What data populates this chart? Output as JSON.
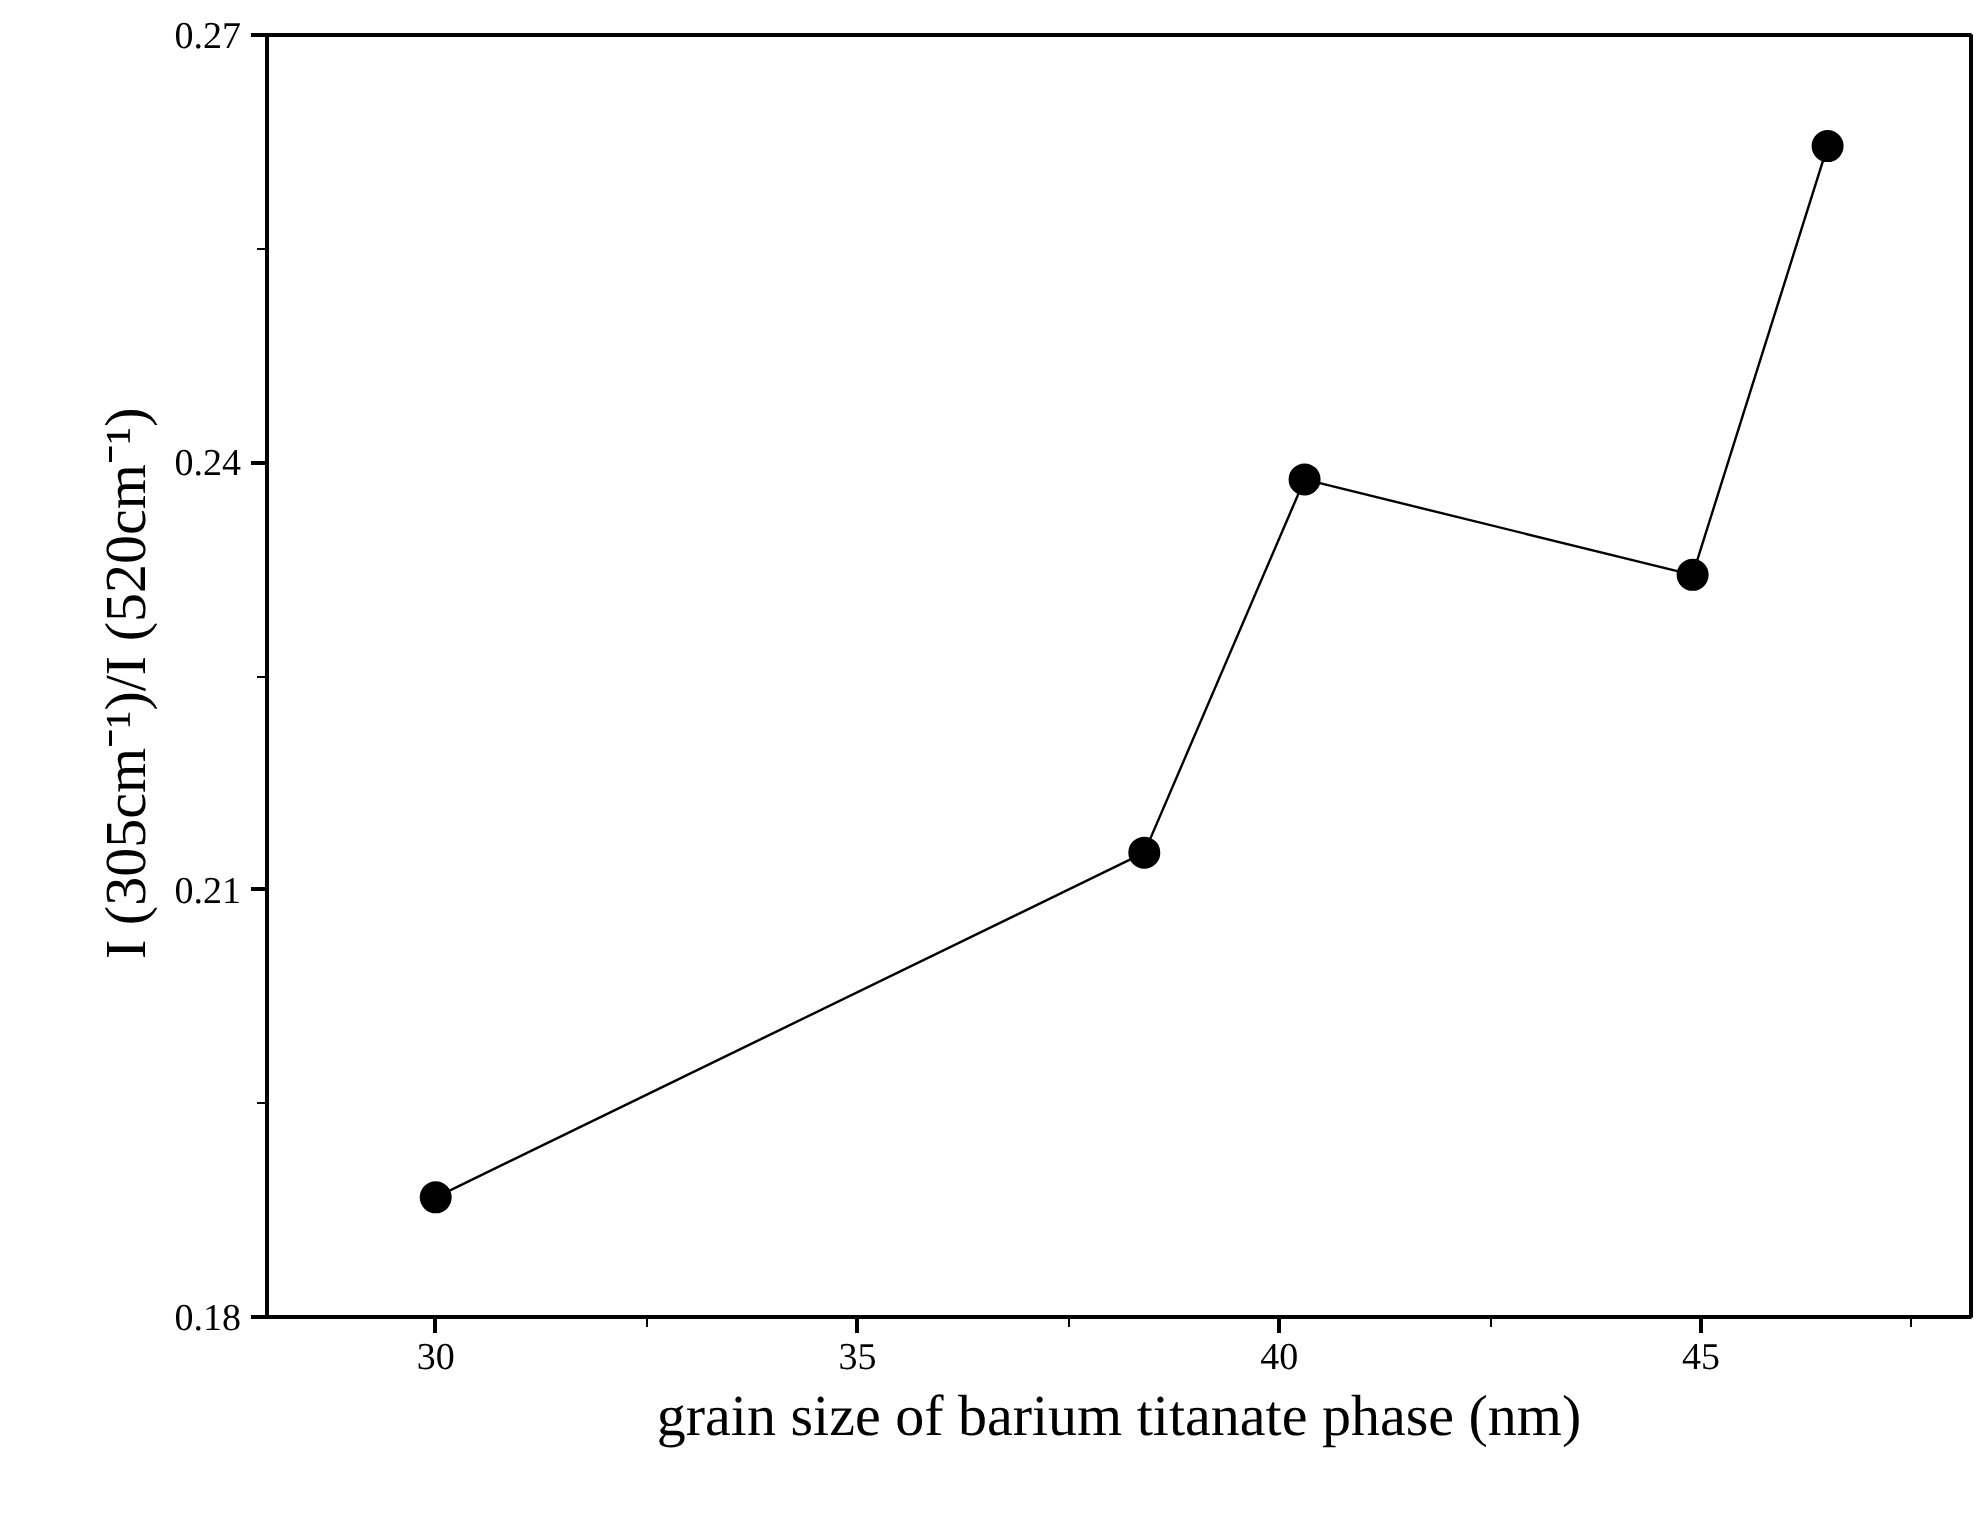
{
  "chart_data": {
    "type": "line",
    "xlabel": "grain size of barium titanate phase (nm)",
    "ylabel": "I  (305cm⁻¹)/I (520cm⁻¹)",
    "x": [
      30.0,
      38.4,
      40.3,
      44.9,
      46.5
    ],
    "series": [
      {
        "color": "#000000",
        "values": [
          0.1884,
          0.2126,
          0.2388,
          0.2321,
          0.2622
        ]
      }
    ],
    "marker": "circle",
    "line_style": "solid",
    "xlim": [
      28,
      48.2
    ],
    "ylim": [
      0.18,
      0.27
    ],
    "xticks": [
      30,
      35,
      40,
      45
    ],
    "yticks": [
      0.18,
      0.21,
      0.24,
      0.27
    ]
  }
}
